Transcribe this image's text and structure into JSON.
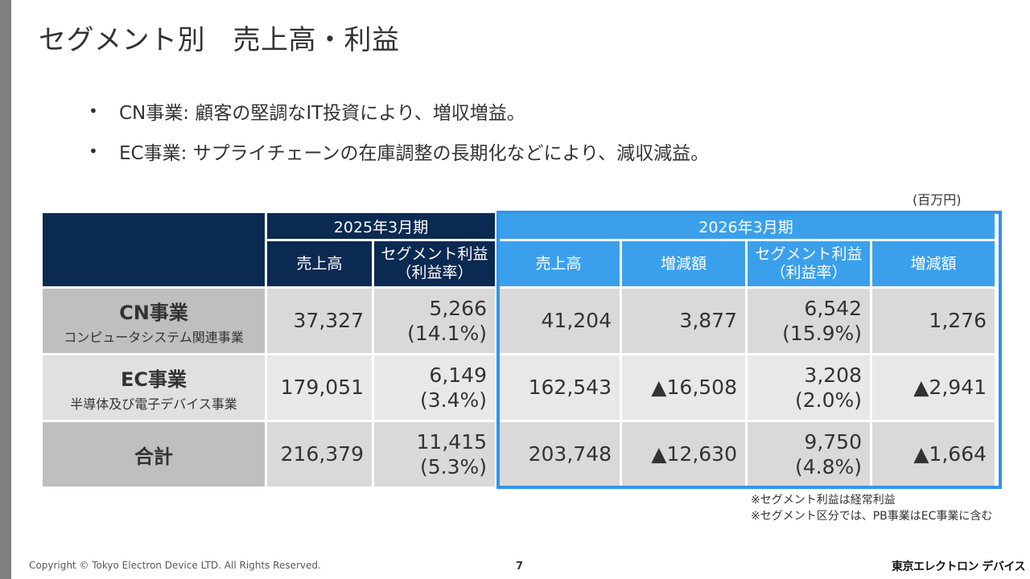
{
  "title": "セグメント別　売上高・利益",
  "bullets": [
    {
      "marker": "•",
      "text": "CN事業: 顧客の堅調なIT投資により、増収増益。"
    },
    {
      "marker": "•",
      "text": "EC事業: サプライチェーンの在庫調整の長期化などにより、減収減益。"
    }
  ],
  "unit": "(百万円)",
  "table": {
    "period_2025": "2025年3月期",
    "period_2026": "2026年3月期",
    "col_sales": "売上高",
    "col_profit_line1": "セグメント利益",
    "col_profit_line2": "（利益率）",
    "col_change": "増減額",
    "rows": [
      {
        "name": "CN事業",
        "sub": "コンピュータシステム関連事業",
        "sales_2025": "37,327",
        "profit_2025": "5,266",
        "rate_2025": "(14.1%)",
        "sales_2026": "41,204",
        "sales_change": "3,877",
        "profit_2026": "6,542",
        "rate_2026": "(15.9%)",
        "profit_change": "1,276"
      },
      {
        "name": "EC事業",
        "sub": "半導体及び電子デバイス事業",
        "sales_2025": "179,051",
        "profit_2025": "6,149",
        "rate_2025": "(3.4%)",
        "sales_2026": "162,543",
        "sales_change": "▲16,508",
        "profit_2026": "3,208",
        "rate_2026": "(2.0%)",
        "profit_change": "▲2,941"
      },
      {
        "name": "合計",
        "sub": "",
        "sales_2025": "216,379",
        "profit_2025": "11,415",
        "rate_2025": "(5.3%)",
        "sales_2026": "203,748",
        "sales_change": "▲12,630",
        "profit_2026": "9,750",
        "rate_2026": "(4.8%)",
        "profit_change": "▲1,664"
      }
    ]
  },
  "notes": [
    "※セグメント利益は経常利益",
    "※セグメント区分では、PB事業はEC事業に含む"
  ],
  "footer": {
    "copyright": "Copyright © Tokyo Electron Device LTD. All Rights Reserved.",
    "page": "7",
    "logo": "東京エレクトロン デバイス"
  },
  "colors": {
    "navy_header": "#0b2a52",
    "blue_header": "#3aa0ec",
    "highlight_border": "#2f95ec",
    "label_gray": "#bfbfbf"
  }
}
